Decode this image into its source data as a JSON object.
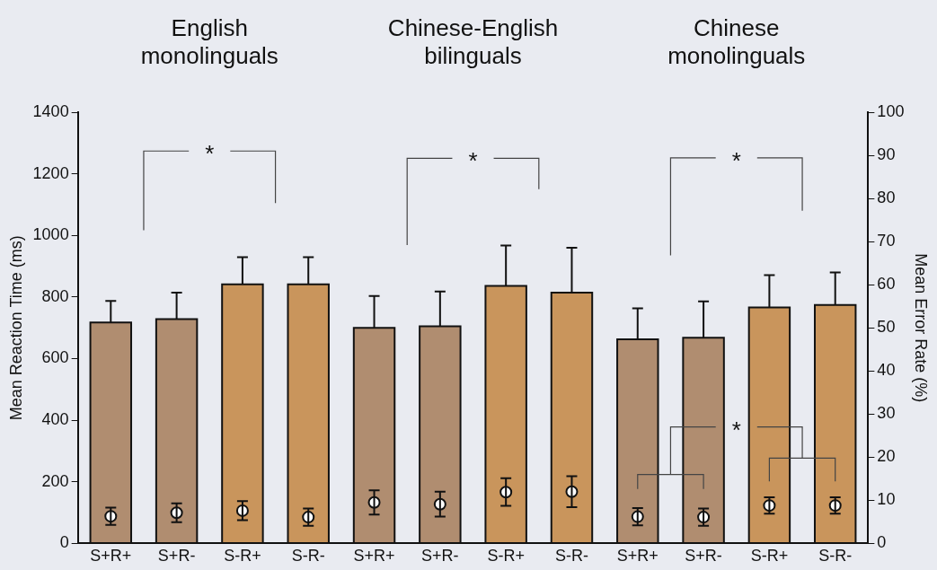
{
  "chart_data": {
    "type": "bar",
    "ylabel": "Mean Reaction Time (ms)",
    "y2label": "Mean Error Rate (%)",
    "categories": [
      "S+R+",
      "S+R-",
      "S-R+",
      "S-R-",
      "S+R+",
      "S+R-",
      "S-R+",
      "S-R-",
      "S+R+",
      "S+R-",
      "S-R+",
      "S-R-"
    ],
    "series": [
      {
        "colors": [
          "#b08d70",
          "#b08d70",
          "#c9955c",
          "#c9955c",
          "#b08d70",
          "#b08d70",
          "#c9955c",
          "#c9955c",
          "#b08d70",
          "#b08d70",
          "#c9955c",
          "#c9955c"
        ],
        "values": [
          717,
          728,
          841,
          841,
          700,
          705,
          836,
          814,
          663,
          668,
          766,
          774
        ],
        "errors": [
          70,
          86,
          88,
          88,
          103,
          113,
          131,
          146,
          100,
          118,
          105,
          106
        ]
      },
      {
        "type": "scatter",
        "axis": "y2",
        "color": "#ffffff",
        "values": [
          6.3,
          7.1,
          7.6,
          6.1,
          9.5,
          9.1,
          11.9,
          12.0,
          6.2,
          6.1,
          8.8,
          8.8
        ],
        "errors": [
          2.0,
          2.2,
          2.2,
          2.0,
          2.8,
          2.9,
          3.2,
          3.6,
          2.0,
          2.0,
          1.9,
          1.9
        ]
      }
    ],
    "ylim": [
      0,
      1400
    ],
    "yticks": [
      0,
      200,
      400,
      600,
      800,
      1000,
      1200,
      1400
    ],
    "y2lim": [
      0,
      100
    ],
    "y2ticks": [
      0,
      10,
      20,
      30,
      40,
      50,
      60,
      70,
      80,
      90,
      100
    ],
    "grid": false,
    "legend": false,
    "marker": "circle",
    "annotations": [
      "English monolinguals",
      "Chinese-English bilinguals",
      "Chinese monolinguals",
      "*",
      "*",
      "*",
      "*"
    ]
  }
}
